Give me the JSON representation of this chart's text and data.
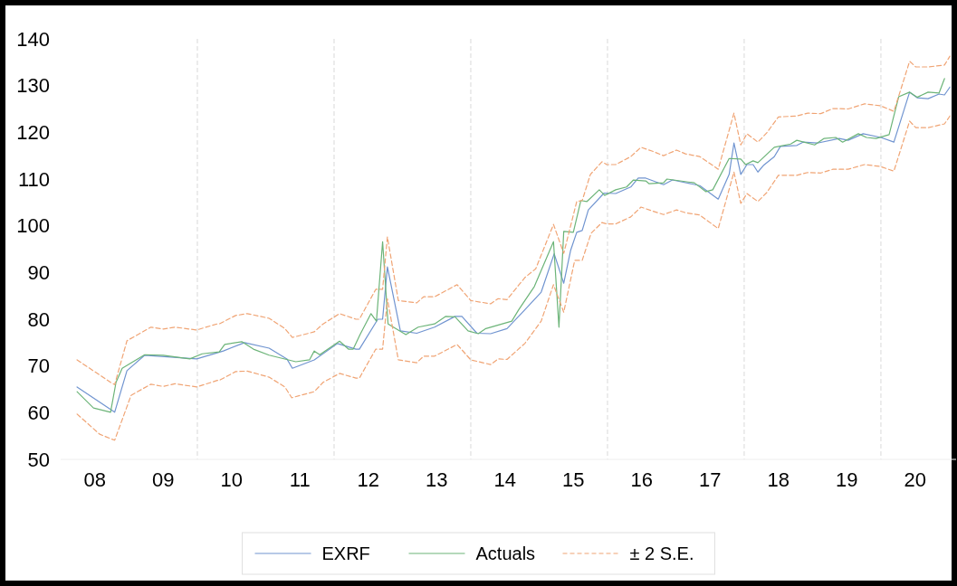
{
  "chart_data": {
    "type": "line",
    "ylim": [
      50,
      140
    ],
    "xlim": [
      7.5,
      20.6
    ],
    "yticks": [
      50,
      60,
      70,
      80,
      90,
      100,
      110,
      120,
      130,
      140
    ],
    "xticks": [
      {
        "value": 8,
        "label": "08"
      },
      {
        "value": 9,
        "label": "09"
      },
      10,
      11,
      12,
      13,
      14,
      15,
      16,
      17,
      18,
      19,
      20
    ],
    "grid": false,
    "legend": "bottom",
    "marker": "none",
    "ref_lines": [
      {
        "axis": "x",
        "value": 9.5,
        "color": "#d9d9d9",
        "line_style": "dashed"
      },
      {
        "axis": "x",
        "value": 11.5,
        "color": "#d9d9d9",
        "line_style": "dashed"
      },
      {
        "axis": "x",
        "value": 13.5,
        "color": "#d9d9d9",
        "line_style": "dashed"
      },
      {
        "axis": "x",
        "value": 15.5,
        "color": "#d9d9d9",
        "line_style": "dashed"
      },
      {
        "axis": "x",
        "value": 17.5,
        "color": "#d9d9d9",
        "line_style": "dashed"
      },
      {
        "axis": "x",
        "value": 19.5,
        "color": "#d9d9d9",
        "line_style": "dashed"
      }
    ],
    "series": [
      {
        "name": "EXRF",
        "color": "#7094d0",
        "line_style": "solid",
        "x": [
          7.74,
          8.29,
          8.47,
          8.73,
          9.49,
          9.88,
          10.19,
          10.55,
          10.81,
          10.89,
          11.21,
          11.55,
          11.82,
          11.87,
          12.14,
          12.21,
          12.28,
          12.47,
          12.71,
          12.97,
          13.27,
          13.37,
          13.59,
          13.79,
          14.03,
          14.29,
          14.53,
          14.72,
          14.86,
          14.96,
          15.05,
          15.13,
          15.22,
          15.45,
          15.62,
          15.84,
          15.95,
          16.06,
          16.32,
          16.45,
          16.85,
          17.12,
          17.28,
          17.35,
          17.45,
          17.54,
          17.63,
          17.7,
          17.78,
          17.94,
          18.03,
          18.27,
          18.36,
          18.57,
          18.89,
          19.02,
          19.24,
          19.5,
          19.69,
          19.92,
          20.03,
          20.19,
          20.35,
          20.43,
          20.51
        ],
        "values": [
          65.5,
          60.1,
          69,
          72.3,
          71.5,
          73.2,
          75,
          73.8,
          71.5,
          69.5,
          71.3,
          74.8,
          73.6,
          73.6,
          80,
          80,
          91.2,
          77.5,
          77,
          78.3,
          80.6,
          80.6,
          77,
          76.9,
          78,
          82,
          85.8,
          94,
          87.7,
          94.7,
          98.6,
          99,
          103.4,
          107,
          106.9,
          108.3,
          110.2,
          110.2,
          108.8,
          109.8,
          108.6,
          105.7,
          111,
          117.7,
          111,
          113.1,
          113.1,
          111.5,
          112.9,
          114.8,
          117,
          117.2,
          117.9,
          117.7,
          118.7,
          118.3,
          119.7,
          118.9,
          117.9,
          128.6,
          127.4,
          127.2,
          128.2,
          128,
          129.7
        ]
      },
      {
        "name": "Actuals",
        "color": "#6cb478",
        "line_style": "solid",
        "x": [
          7.74,
          7.98,
          8.23,
          8.31,
          8.4,
          8.73,
          9.0,
          9.39,
          9.57,
          9.82,
          9.9,
          10.15,
          10.32,
          10.55,
          10.94,
          11.14,
          11.21,
          11.29,
          11.58,
          11.71,
          11.78,
          11.88,
          12.04,
          12.12,
          12.21,
          12.29,
          12.55,
          12.73,
          12.97,
          13.13,
          13.27,
          13.46,
          13.61,
          13.72,
          14.1,
          14.2,
          14.43,
          14.71,
          14.79,
          14.86,
          15.0,
          15.11,
          15.2,
          15.38,
          15.46,
          15.62,
          15.78,
          15.88,
          16.06,
          16.11,
          16.32,
          16.37,
          16.77,
          16.94,
          17.04,
          17.28,
          17.45,
          17.52,
          17.63,
          17.7,
          17.94,
          18.18,
          18.27,
          18.53,
          18.67,
          18.84,
          18.94,
          19.17,
          19.29,
          19.43,
          19.62,
          19.76,
          19.92,
          20.03,
          20.19,
          20.35,
          20.43
        ],
        "values": [
          64.5,
          61,
          60.1,
          66.5,
          69.5,
          72.4,
          72.3,
          71.5,
          72.6,
          73,
          74.6,
          75.2,
          73.6,
          72.3,
          70.9,
          71.3,
          73.2,
          72.4,
          75.3,
          73.6,
          73.6,
          76.7,
          81.2,
          79.6,
          96.6,
          79,
          76.7,
          78.3,
          79,
          80.6,
          80.5,
          77.5,
          76.9,
          78,
          79.6,
          82,
          87,
          96.6,
          78.3,
          98.8,
          98.6,
          105.4,
          105.2,
          107.7,
          106.5,
          107.7,
          108.3,
          109.8,
          109.6,
          109,
          109.2,
          110,
          109.2,
          107.3,
          107.7,
          114.4,
          114.3,
          113.1,
          113.9,
          113.5,
          116.8,
          117.5,
          118.3,
          117.3,
          118.7,
          118.9,
          117.9,
          119.7,
          118.9,
          118.7,
          119.5,
          127.6,
          128.6,
          127.5,
          128.6,
          128.4,
          131.5
        ]
      },
      {
        "name": "± 2 S.E.",
        "color": "#f0a474",
        "line_style": "dashed",
        "x": [
          7.74,
          8.23,
          8.29,
          8.47,
          8.82,
          9.0,
          9.17,
          9.49,
          9.79,
          9.82,
          10.06,
          10.23,
          10.55,
          10.78,
          10.89,
          11.21,
          11.34,
          11.58,
          11.82,
          11.87,
          12.11,
          12.21,
          12.28,
          12.44,
          12.71,
          12.81,
          12.97,
          13.3,
          13.5,
          13.79,
          13.9,
          14.03,
          14.29,
          14.45,
          14.71,
          14.86,
          15.05,
          15.13,
          15.25,
          15.42,
          15.49,
          15.62,
          15.84,
          15.99,
          16.15,
          16.32,
          16.51,
          16.64,
          16.85,
          17.12,
          17.35,
          17.45,
          17.54,
          17.7,
          17.83,
          18.0,
          18.27,
          18.43,
          18.62,
          18.8,
          19.02,
          19.26,
          19.49,
          19.69,
          19.92,
          20.01,
          20.19,
          20.43,
          20.51
        ],
        "values": [
          71.3,
          66.5,
          66,
          75.4,
          78.3,
          77.9,
          78.3,
          77.7,
          79,
          79,
          80.8,
          81.2,
          80.2,
          78,
          76.1,
          77.3,
          79,
          81.2,
          80,
          80,
          86.4,
          86.4,
          97.6,
          84,
          83.5,
          84.8,
          84.8,
          87.4,
          84,
          83.3,
          84.4,
          84.2,
          88.9,
          90.8,
          100.3,
          94.1,
          105.2,
          105.4,
          111,
          113.7,
          113.1,
          113.1,
          114.8,
          116.8,
          116,
          115,
          116.2,
          115.4,
          114.8,
          112.1,
          124.1,
          117.3,
          119.7,
          117.9,
          119.9,
          123.3,
          123.5,
          124.1,
          124,
          125.1,
          125,
          126.1,
          125.7,
          124.5,
          135.2,
          134,
          134,
          134.4,
          136.3
        ]
      },
      {
        "color": "#f0a474",
        "line_style": "dashed",
        "x": [
          7.74,
          8.07,
          8.29,
          8.53,
          8.82,
          9.0,
          9.17,
          9.49,
          9.79,
          9.82,
          10.06,
          10.23,
          10.55,
          10.78,
          10.88,
          11.21,
          11.34,
          11.58,
          11.82,
          11.87,
          12.11,
          12.21,
          12.28,
          12.44,
          12.71,
          12.81,
          12.97,
          13.3,
          13.5,
          13.79,
          13.9,
          14.03,
          14.29,
          14.53,
          14.71,
          14.86,
          15.02,
          15.13,
          15.26,
          15.42,
          15.49,
          15.62,
          15.84,
          15.99,
          16.15,
          16.32,
          16.51,
          16.64,
          16.85,
          17.12,
          17.35,
          17.45,
          17.54,
          17.7,
          17.83,
          18.0,
          18.27,
          18.43,
          18.62,
          18.8,
          19.02,
          19.26,
          19.49,
          19.69,
          19.92,
          20.01,
          20.19,
          20.43,
          20.51
        ],
        "values": [
          59.7,
          55.4,
          54.1,
          63.7,
          66.1,
          65.6,
          66.2,
          65.5,
          66.9,
          66.9,
          68.8,
          68.9,
          67.6,
          65.5,
          63.2,
          64.5,
          66.5,
          68.4,
          67.4,
          67.4,
          73.6,
          73.6,
          84.4,
          71.3,
          70.7,
          72.1,
          72.1,
          74.6,
          71.3,
          70.3,
          71.5,
          71.4,
          74.8,
          79.6,
          87.4,
          81.5,
          92.6,
          92.6,
          98.4,
          100.7,
          100.4,
          100.4,
          101.9,
          104,
          103.2,
          102.4,
          103.4,
          102.8,
          102.3,
          99.4,
          111.5,
          104.8,
          106.9,
          105.2,
          107.1,
          110.8,
          110.8,
          111.4,
          111.3,
          112.1,
          112.1,
          113.1,
          112.7,
          111.7,
          122.4,
          121,
          121,
          121.8,
          123.5
        ]
      }
    ]
  }
}
